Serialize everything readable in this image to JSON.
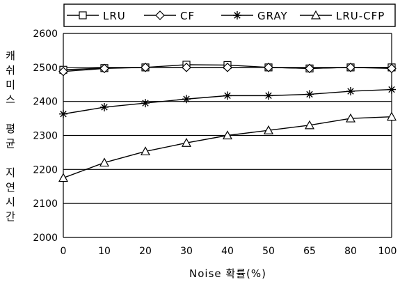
{
  "chart_data": {
    "type": "line",
    "categories": [
      "0",
      "10",
      "20",
      "30",
      "40",
      "50",
      "65",
      "80",
      "100"
    ],
    "xlabel": "Noise 확률(%)",
    "ylabel": "캐쉬미스 평균 지연시간",
    "ylabel_chars": [
      "캐",
      "쉬",
      "미",
      "스",
      "",
      "평",
      "균",
      "",
      "지",
      "연",
      "시",
      "간"
    ],
    "ylim": [
      2000,
      2600
    ],
    "yticks": [
      2000,
      2100,
      2200,
      2300,
      2400,
      2500,
      2600
    ],
    "grid": "horizontal",
    "legend": "top",
    "series": [
      {
        "name": "LRU",
        "marker": "square",
        "values": [
          2493,
          2498,
          2500,
          2508,
          2507,
          2500,
          2497,
          2500,
          2500
        ]
      },
      {
        "name": "CF",
        "marker": "diamond",
        "values": [
          2488,
          2497,
          2500,
          2500,
          2500,
          2500,
          2497,
          2500,
          2497
        ]
      },
      {
        "name": "GRAY",
        "marker": "star",
        "values": [
          2363,
          2383,
          2395,
          2407,
          2417,
          2417,
          2421,
          2430,
          2435
        ]
      },
      {
        "name": "LRU-CFP",
        "marker": "triangle",
        "values": [
          2175,
          2220,
          2253,
          2278,
          2300,
          2315,
          2330,
          2350,
          2355
        ]
      }
    ]
  }
}
